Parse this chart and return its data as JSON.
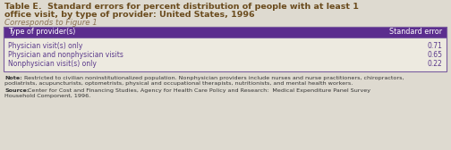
{
  "title_line1": "Table E.  Standard errors for percent distribution of people with at least 1",
  "title_line2": "office visit, by type of provider: United States, 1996",
  "subtitle": "Corresponds to Figure 1",
  "header_col1": "Type of provider(s)",
  "header_col2": "Standard error",
  "rows": [
    [
      "Physician visit(s) only",
      "0.71"
    ],
    [
      "Physician and nonphysician visits",
      "0.65"
    ],
    [
      "Nonphysician visit(s) only",
      "0.22"
    ]
  ],
  "note_bold": "Note:",
  "note_text": " Restricted to civilian noninstitutionalized population. Nonphysician providers include nurses and nurse practitioners, chiropractors, podiatrists, acupuncturists, optometrists, physical and occupational therapists, nutritionists, and mental health workers.",
  "source_bold": "Source:",
  "source_text": " Center for Cost and Financing Studies, Agency for Health Care Policy and Research:  Medical Expenditure Panel Survey Household Component, 1996.",
  "note_line1": "Note: Restricted to civilian noninstitutionalized population. Nonphysician providers include nurses and nurse practitioners, chiropractors,",
  "note_line2": "podiatrists, acupuncturists, optometrists, physical and occupational therapists, nutritionists, and mental health workers.",
  "source_line1": "Source: Center for Cost and Financing Studies, Agency for Health Care Policy and Research:  Medical Expenditure Panel Survey",
  "source_line2": "Household Component, 1996.",
  "bg_color": "#dedad0",
  "header_bg": "#5b2d8e",
  "header_fg": "#ffffff",
  "row_text_color": "#5b3a8c",
  "title_color": "#6b4c1e",
  "subtitle_color": "#8b7355",
  "note_color": "#333333",
  "border_color": "#7a5c9e",
  "table_bg": "#edeae0"
}
